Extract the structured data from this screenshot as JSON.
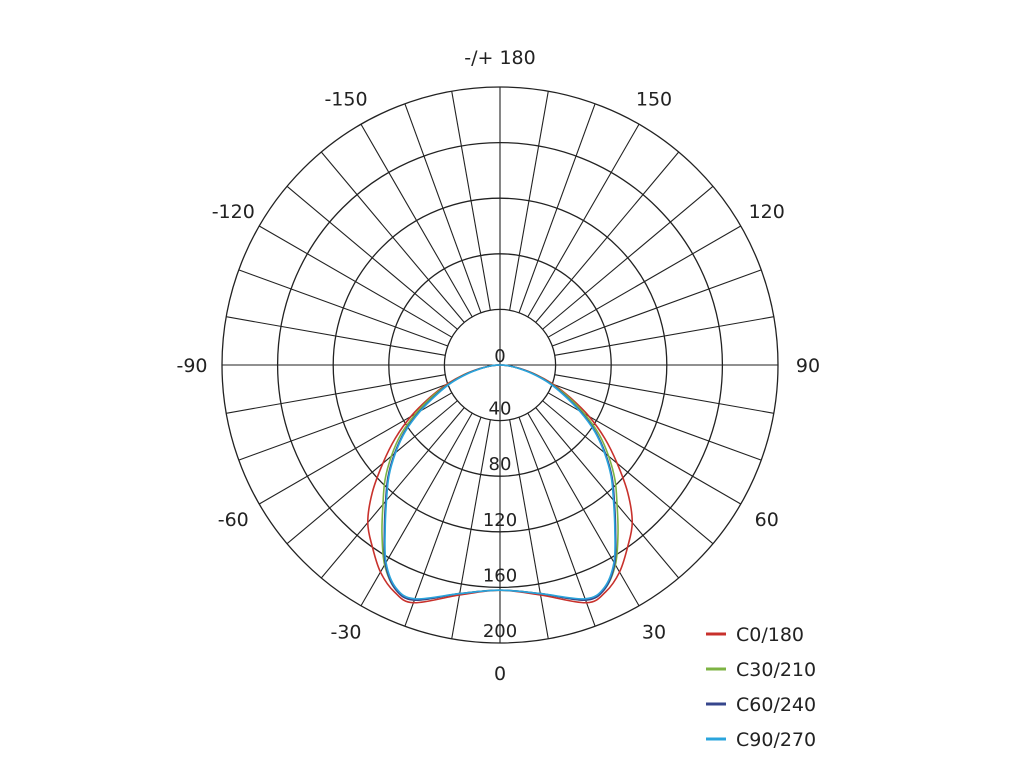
{
  "chart_data": {
    "type": "polar-line",
    "angle_labels": [
      {
        "angle": 0,
        "label": "0"
      },
      {
        "angle": 30,
        "label": "30"
      },
      {
        "angle": 60,
        "label": "60"
      },
      {
        "angle": 90,
        "label": "90"
      },
      {
        "angle": 120,
        "label": "120"
      },
      {
        "angle": 150,
        "label": "150"
      },
      {
        "angle": 180,
        "label": "-/+ 180"
      },
      {
        "angle": -150,
        "label": "-150"
      },
      {
        "angle": -120,
        "label": "-120"
      },
      {
        "angle": -90,
        "label": "-90"
      },
      {
        "angle": -60,
        "label": "-60"
      },
      {
        "angle": -30,
        "label": "-30"
      }
    ],
    "radial_ticks": [
      "0",
      "40",
      "80",
      "120",
      "160",
      "200"
    ],
    "rlim": [
      0,
      200
    ],
    "angle_grid_step": 10,
    "grid": true,
    "legend_position": "bottom-right",
    "gamma": [
      0,
      10,
      20,
      25,
      30,
      35,
      40,
      45,
      50,
      55,
      60,
      65,
      70,
      75,
      80,
      85,
      90
    ],
    "series": [
      {
        "name": "C0/180",
        "color": "#c8312c",
        "values": [
          162,
          168,
          182,
          180,
          172,
          160,
          148,
          130,
          110,
          92,
          74,
          56,
          41,
          27,
          15,
          6,
          0
        ]
      },
      {
        "name": "C30/210",
        "color": "#7db343",
        "values": [
          162,
          167,
          180,
          178,
          166,
          148,
          131,
          117,
          102,
          87,
          70,
          54,
          39,
          26,
          14,
          6,
          0
        ]
      },
      {
        "name": "C60/240",
        "color": "#36468c",
        "values": [
          162,
          167,
          180,
          178,
          165,
          145,
          128,
          114,
          99,
          84,
          67,
          51,
          38,
          25,
          14,
          6,
          0
        ]
      },
      {
        "name": "C90/270",
        "color": "#2aa4dc",
        "values": [
          162,
          167,
          179,
          177,
          164,
          144,
          127,
          113,
          98,
          83,
          66,
          50,
          37,
          24,
          13,
          6,
          0
        ]
      }
    ]
  }
}
